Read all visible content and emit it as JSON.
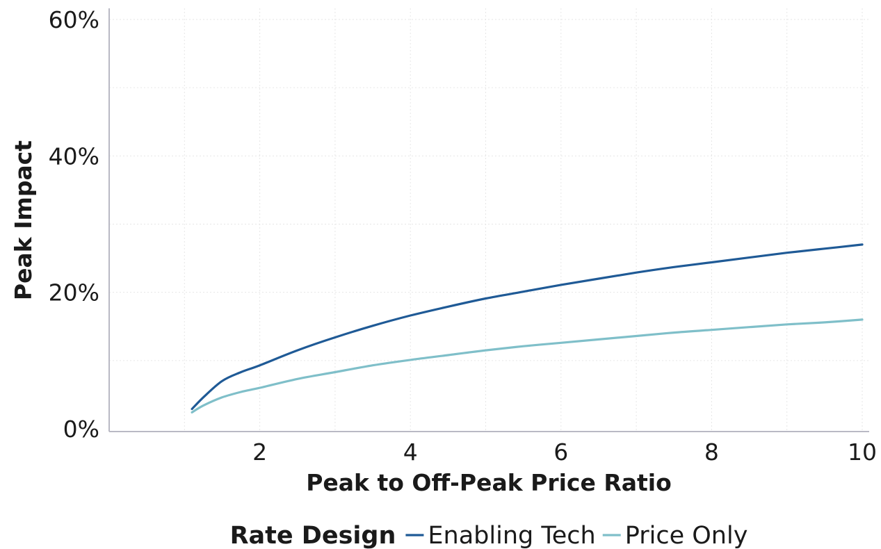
{
  "chart_data": {
    "type": "line",
    "xlabel": "Peak to Off-Peak Price Ratio",
    "ylabel": "Peak Impact",
    "xlim": [
      0,
      10
    ],
    "ylim": [
      0,
      60
    ],
    "xticks": [
      2,
      4,
      6,
      8,
      10
    ],
    "xtick_labels": [
      "2",
      "4",
      "6",
      "8",
      "10"
    ],
    "yticks": [
      0,
      20,
      40,
      60
    ],
    "ytick_labels": [
      "0%",
      "20%",
      "40%",
      "60%"
    ],
    "grid": true,
    "legend": {
      "title": "Rate Design",
      "position": "bottom"
    },
    "series": [
      {
        "name": "Enabling Tech",
        "color": "#1f5a96",
        "x": [
          1.1,
          1.25,
          1.5,
          1.75,
          2,
          2.5,
          3,
          3.5,
          4,
          4.5,
          5,
          5.5,
          6,
          6.5,
          7,
          7.5,
          8,
          8.5,
          9,
          9.5,
          10
        ],
        "y": [
          2.9,
          4.6,
          7.0,
          8.3,
          9.3,
          11.5,
          13.4,
          15.1,
          16.6,
          17.9,
          19.1,
          20.1,
          21.1,
          22.0,
          22.9,
          23.7,
          24.4,
          25.1,
          25.8,
          26.4,
          27.0
        ]
      },
      {
        "name": "Price Only",
        "color": "#7fbfc9",
        "x": [
          1.1,
          1.25,
          1.5,
          1.75,
          2,
          2.5,
          3,
          3.5,
          4,
          4.5,
          5,
          5.5,
          6,
          6.5,
          7,
          7.5,
          8,
          8.5,
          9,
          9.5,
          10
        ],
        "y": [
          2.4,
          3.4,
          4.6,
          5.4,
          6.0,
          7.3,
          8.3,
          9.3,
          10.1,
          10.8,
          11.5,
          12.1,
          12.6,
          13.1,
          13.6,
          14.1,
          14.5,
          14.9,
          15.3,
          15.6,
          16.0
        ]
      }
    ]
  }
}
